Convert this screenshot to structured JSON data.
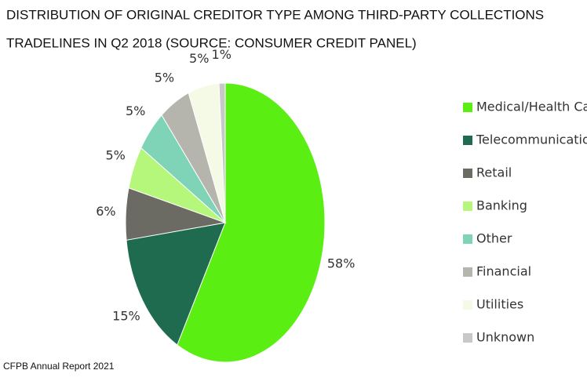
{
  "chart_data": {
    "type": "pie",
    "title": [
      "DISTRIBUTION OF ORIGINAL CREDITOR TYPE AMONG THIRD-PARTY COLLECTIONS",
      "TRADELINES IN Q2 2018 (SOURCE: CONSUMER CREDIT PANEL)"
    ],
    "source": "CFPB Annual Report 2021",
    "categories": [
      "Medical/Health Care",
      "Telecommunications",
      "Retail",
      "Banking",
      "Other",
      "Financial",
      "Utilities",
      "Unknown"
    ],
    "values": [
      58,
      15,
      6,
      5,
      5,
      5,
      5,
      1
    ],
    "value_labels": [
      "58%",
      "15%",
      "6%",
      "5%",
      "5%",
      "5%",
      "5%",
      "1%"
    ],
    "colors": [
      "#5aee12",
      "#1e6b50",
      "#6b6b63",
      "#b5f77a",
      "#7fd4b8",
      "#b5b5ae",
      "#f4fae6",
      "#c8c8c8"
    ],
    "legend": "right"
  }
}
